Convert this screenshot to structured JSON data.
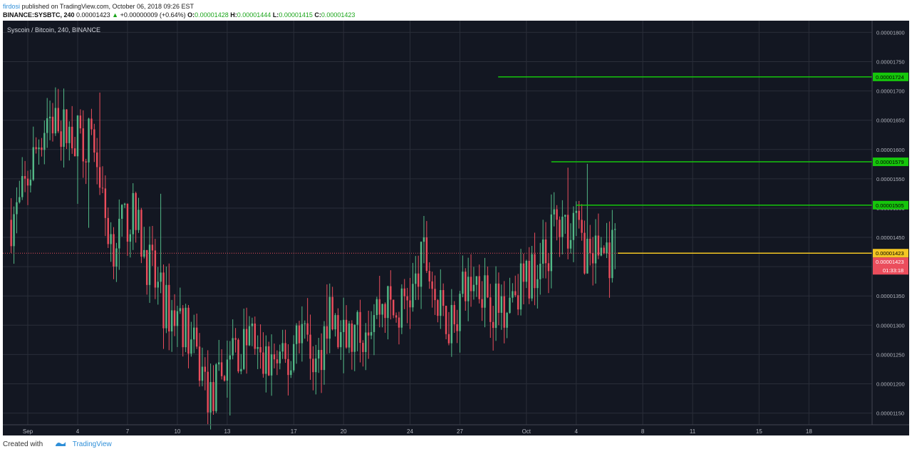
{
  "header": {
    "user": "firdosi",
    "published": "published on TradingView.com, October 06, 2018 09:26 EST"
  },
  "ohlc_line": {
    "symbol": "BINANCE:SYSBTC, 240",
    "last": "0.00001423",
    "arrow": "▲",
    "change": "+0.00000009 (+0.64%)",
    "o_label": "O:",
    "o": "0.00001428",
    "h_label": "H:",
    "h": "0.00001444",
    "l_label": "L:",
    "l": "0.00001415",
    "c_label": "C:",
    "c": "0.00001423"
  },
  "chart_data": {
    "type": "candlestick",
    "title": "Syscoin / Bitcoin, 240, BINANCE",
    "y_ticks": [
      1.15e-05,
      1.2e-05,
      1.25e-05,
      1.3e-05,
      1.35e-05,
      1.4e-05,
      1.45e-05,
      1.5e-05,
      1.55e-05,
      1.6e-05,
      1.65e-05,
      1.7e-05,
      1.75e-05,
      1.8e-05
    ],
    "ylim": [
      1.13e-05,
      1.82e-05
    ],
    "x_ticks": [
      {
        "label": "Sep",
        "day": 1
      },
      {
        "label": "4",
        "day": 4
      },
      {
        "label": "7",
        "day": 7
      },
      {
        "label": "10",
        "day": 10
      },
      {
        "label": "13",
        "day": 13
      },
      {
        "label": "17",
        "day": 17
      },
      {
        "label": "20",
        "day": 20
      },
      {
        "label": "24",
        "day": 24
      },
      {
        "label": "27",
        "day": 27
      },
      {
        "label": "Oct",
        "day": 31
      },
      {
        "label": "4",
        "day": 34
      },
      {
        "label": "8",
        "day": 38
      },
      {
        "label": "11",
        "day": 41
      },
      {
        "label": "15",
        "day": 45
      },
      {
        "label": "18",
        "day": 48
      }
    ],
    "xlim": [
      -0.5,
      51.8
    ],
    "path_days": [
      0,
      0.5,
      1,
      1.6,
      2.2,
      2.8,
      3.4,
      4,
      4.6,
      5.1,
      5.5,
      6.1,
      6.8,
      7.2,
      7.8,
      8.2,
      8.7,
      9.2,
      9.8,
      10.3,
      10.8,
      11.2,
      11.6,
      12,
      12.6,
      13.3,
      13.8,
      14.4,
      15,
      15.6,
      16.2,
      16.8,
      17.2,
      17.8,
      18.4,
      19,
      19.6,
      20.2,
      20.8,
      21.4,
      22,
      22.6,
      23.2,
      23.8,
      24.3,
      24.8,
      25.2,
      25.7,
      26.3,
      26.8,
      27.3,
      27.9,
      28.5,
      29.1,
      29.7,
      30.3,
      30.7,
      31.2,
      31.7,
      32.2,
      32.7,
      33.2,
      33.7,
      34.3,
      34.9,
      35.5,
      36,
      36.4
    ],
    "path_closes": [
      1.48e-05,
      1.5e-05,
      1.55e-05,
      1.61e-05,
      1.66e-05,
      1.64e-05,
      1.63e-05,
      1.62e-05,
      1.62e-05,
      1.6e-05,
      1.5e-05,
      1.44e-05,
      1.47e-05,
      1.49e-05,
      1.45e-05,
      1.41e-05,
      1.37e-05,
      1.33e-05,
      1.32e-05,
      1.31e-05,
      1.27e-05,
      1.24e-05,
      1.21e-05,
      1.17e-05,
      1.21e-05,
      1.27e-05,
      1.25e-05,
      1.29e-05,
      1.23e-05,
      1.24e-05,
      1.23e-05,
      1.23e-05,
      1.31e-05,
      1.28e-05,
      1.22e-05,
      1.32e-05,
      1.28e-05,
      1.27e-05,
      1.28e-05,
      1.31e-05,
      1.33e-05,
      1.34e-05,
      1.31e-05,
      1.35e-05,
      1.36e-05,
      1.42e-05,
      1.39e-05,
      1.32e-05,
      1.31e-05,
      1.33e-05,
      1.36e-05,
      1.38e-05,
      1.37e-05,
      1.33e-05,
      1.34e-05,
      1.37e-05,
      1.37e-05,
      1.38e-05,
      1.42e-05,
      1.41e-05,
      1.48e-05,
      1.45e-05,
      1.49e-05,
      1.44e-05,
      1.42e-05,
      1.43e-05,
      1.42e-05,
      1.42e-05
    ],
    "bull_color": "#26a69a",
    "bear_color": "#ef5350",
    "up_color": "#53b987",
    "down_color": "#eb4d5c",
    "levels": [
      {
        "price": "0.00001724",
        "value": 1.724e-05,
        "start_day": 29.3,
        "color": "#16c60c",
        "label_bg": "#16c60c"
      },
      {
        "price": "0.00001579",
        "value": 1.579e-05,
        "start_day": 32.5,
        "color": "#16c60c",
        "label_bg": "#16c60c"
      },
      {
        "price": "0.00001505",
        "value": 1.505e-05,
        "start_day": 34,
        "color": "#16c60c",
        "label_bg": "#16c60c"
      }
    ],
    "last_price": {
      "price": "0.00001423",
      "value": 1.423e-05,
      "start_day": 36.5,
      "color": "#f3c623"
    },
    "current_price": {
      "price": "0.00001423",
      "countdown": "01:33:18",
      "color": "#eb4d5c"
    },
    "grid": true
  },
  "footer": {
    "created_with": "Created with",
    "brand": "TradingView"
  },
  "colors": {
    "background": "#131722",
    "grid": "#2a2e39",
    "axis_text": "#b2b5be"
  }
}
